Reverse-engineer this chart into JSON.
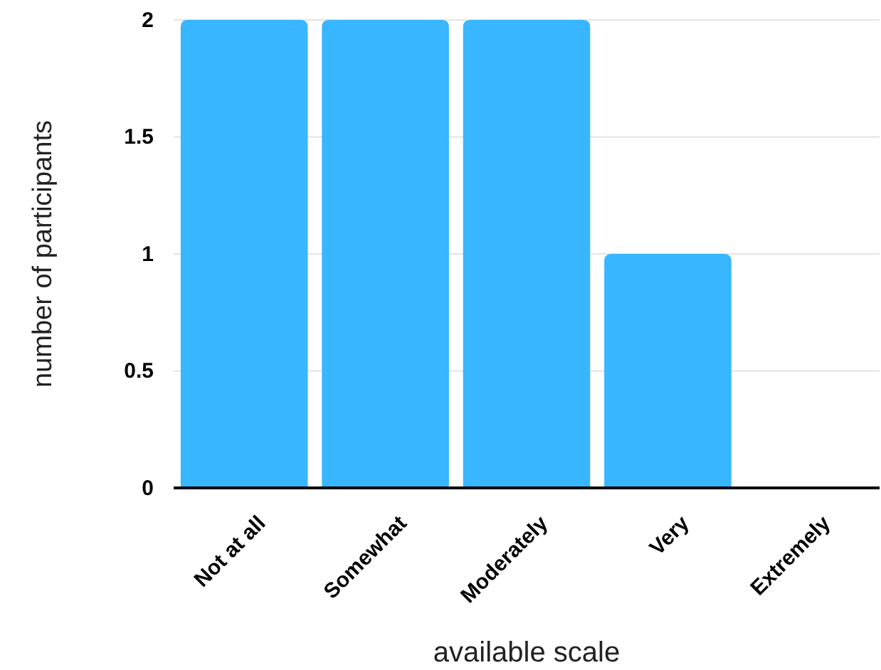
{
  "chart_data": {
    "type": "bar",
    "xlabel": "available scale",
    "ylabel": "number of participants",
    "categories": [
      "Not at all",
      "Somewhat",
      "Moderately",
      "Very",
      "Extremely"
    ],
    "values": [
      2,
      2,
      2,
      1,
      0
    ],
    "color": "#38b6ff",
    "ylim": [
      0,
      2
    ],
    "yticks": [
      0,
      {
        "value": 0.5,
        "label": "0.5"
      },
      1,
      {
        "value": 1.5,
        "label": "1.5"
      },
      2
    ],
    "grid": "y"
  }
}
